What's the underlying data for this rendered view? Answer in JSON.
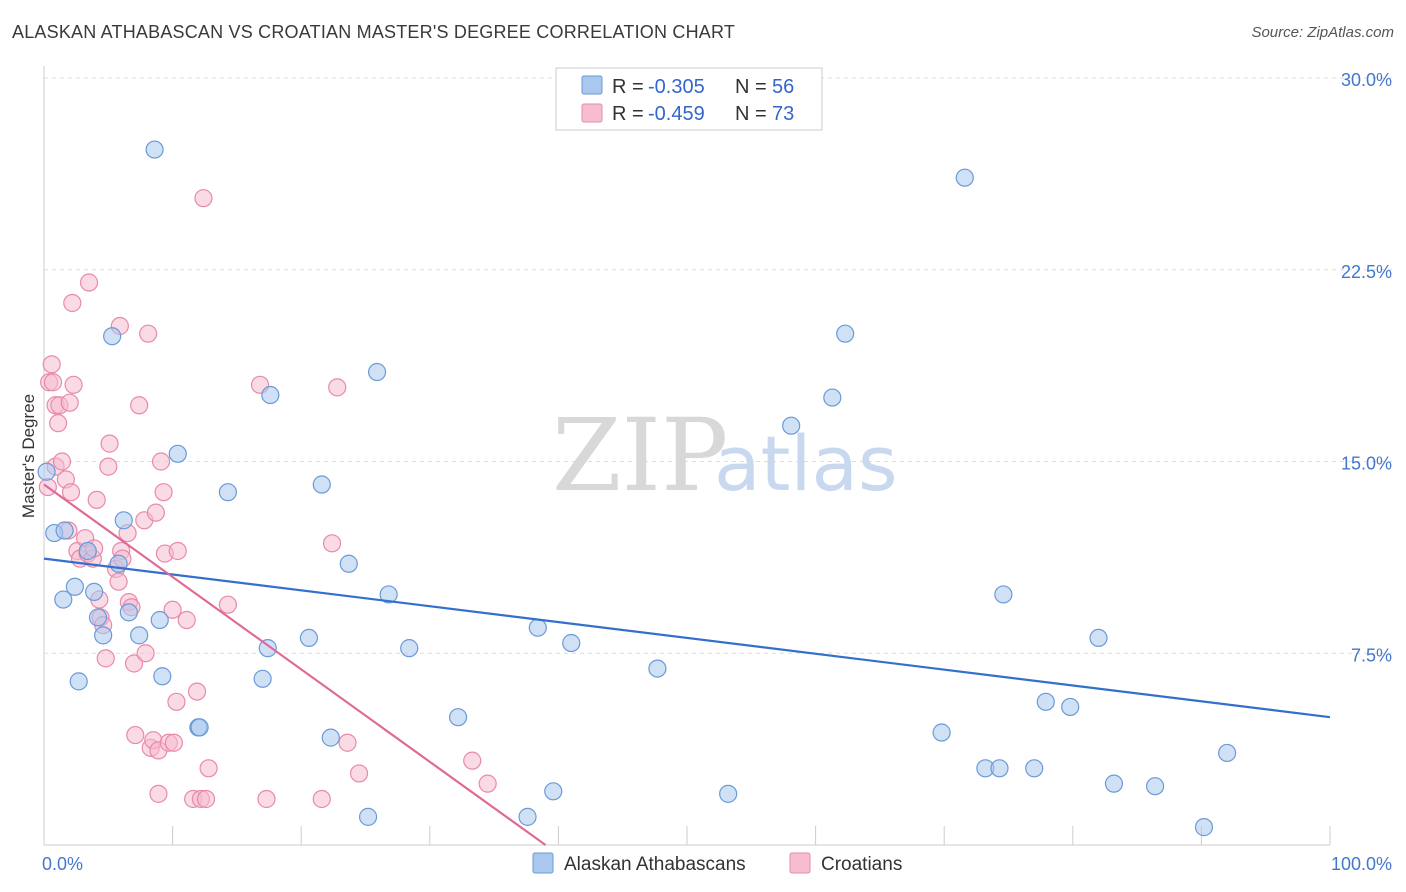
{
  "title": "ALASKAN ATHABASCAN VS CROATIAN MASTER'S DEGREE CORRELATION CHART",
  "source": "Source: ZipAtlas.com",
  "watermark": {
    "zip": "ZIP",
    "atlas": "atlas"
  },
  "legend": {
    "r_label": "R =",
    "n_label": "N =",
    "series": [
      {
        "r": "-0.305",
        "n": "56"
      },
      {
        "r": "-0.459",
        "n": "73"
      }
    ]
  },
  "bottom_legend": [
    "Alaskan Athabascans",
    "Croatians"
  ],
  "colors": {
    "blue_fill": "#aac8ee",
    "blue_stroke": "#6a9ad8",
    "blue_line": "#3370cc",
    "pink_fill": "#f6bcd0",
    "pink_stroke": "#e88aaa",
    "pink_line": "#e06a96",
    "grid": "#dddddd",
    "tick_text": "#4477cc"
  },
  "chart_data": {
    "type": "scatter",
    "title": "ALASKAN ATHABASCAN VS CROATIAN MASTER'S DEGREE CORRELATION CHART",
    "xlabel": "",
    "ylabel": "Master's Degree",
    "xlim": [
      0,
      100
    ],
    "ylim": [
      0,
      30
    ],
    "x_tick_labels": [
      "0.0%",
      "100.0%"
    ],
    "y_ticks": [
      7.5,
      15.0,
      22.5,
      30.0
    ],
    "y_tick_labels": [
      "7.5%",
      "15.0%",
      "22.5%",
      "30.0%"
    ],
    "grid": true,
    "legend_position": "top-center",
    "series": [
      {
        "name": "Alaskan Athabascans",
        "r": -0.305,
        "n": 56,
        "trend": {
          "x": [
            0,
            100
          ],
          "y": [
            11.2,
            5.0
          ]
        },
        "points": [
          [
            0.2,
            14.6
          ],
          [
            0.8,
            12.2
          ],
          [
            1.6,
            12.3
          ],
          [
            1.5,
            9.6
          ],
          [
            2.4,
            10.1
          ],
          [
            2.7,
            6.4
          ],
          [
            3.4,
            11.5
          ],
          [
            3.9,
            9.9
          ],
          [
            4.2,
            8.9
          ],
          [
            4.6,
            8.2
          ],
          [
            5.3,
            19.9
          ],
          [
            5.8,
            11.0
          ],
          [
            6.2,
            12.7
          ],
          [
            6.6,
            9.1
          ],
          [
            7.4,
            8.2
          ],
          [
            8.6,
            27.2
          ],
          [
            9.0,
            8.8
          ],
          [
            9.2,
            6.6
          ],
          [
            10.4,
            15.3
          ],
          [
            12.0,
            4.6
          ],
          [
            12.1,
            4.6
          ],
          [
            14.3,
            13.8
          ],
          [
            17.0,
            6.5
          ],
          [
            17.4,
            7.7
          ],
          [
            17.6,
            17.6
          ],
          [
            20.6,
            8.1
          ],
          [
            21.6,
            14.1
          ],
          [
            22.3,
            4.2
          ],
          [
            23.7,
            11.0
          ],
          [
            25.2,
            1.1
          ],
          [
            25.9,
            18.5
          ],
          [
            26.8,
            9.8
          ],
          [
            28.4,
            7.7
          ],
          [
            32.2,
            5.0
          ],
          [
            37.6,
            1.1
          ],
          [
            38.4,
            8.5
          ],
          [
            39.6,
            2.1
          ],
          [
            41.0,
            7.9
          ],
          [
            47.7,
            6.9
          ],
          [
            53.2,
            2.0
          ],
          [
            58.1,
            16.4
          ],
          [
            61.3,
            17.5
          ],
          [
            62.3,
            20.0
          ],
          [
            69.8,
            4.4
          ],
          [
            71.6,
            26.1
          ],
          [
            73.2,
            3.0
          ],
          [
            74.3,
            3.0
          ],
          [
            74.6,
            9.8
          ],
          [
            77.0,
            3.0
          ],
          [
            77.9,
            5.6
          ],
          [
            79.8,
            5.4
          ],
          [
            82.0,
            8.1
          ],
          [
            83.2,
            2.4
          ],
          [
            86.4,
            2.3
          ],
          [
            90.2,
            0.7
          ],
          [
            92.0,
            3.6
          ]
        ]
      },
      {
        "name": "Croatians",
        "r": -0.459,
        "n": 73,
        "trend": {
          "x": [
            0,
            39
          ],
          "y": [
            14.1,
            0
          ]
        },
        "points": [
          [
            0.3,
            14.0
          ],
          [
            0.4,
            18.1
          ],
          [
            0.6,
            18.8
          ],
          [
            0.7,
            18.1
          ],
          [
            0.9,
            17.2
          ],
          [
            0.9,
            14.8
          ],
          [
            1.1,
            16.5
          ],
          [
            1.2,
            17.2
          ],
          [
            1.4,
            15.0
          ],
          [
            1.7,
            14.3
          ],
          [
            1.9,
            12.3
          ],
          [
            2.0,
            17.3
          ],
          [
            2.1,
            13.8
          ],
          [
            2.2,
            21.2
          ],
          [
            2.3,
            18.0
          ],
          [
            2.6,
            11.5
          ],
          [
            2.8,
            11.2
          ],
          [
            3.2,
            12.0
          ],
          [
            3.4,
            11.4
          ],
          [
            3.5,
            22.0
          ],
          [
            3.8,
            11.2
          ],
          [
            3.9,
            11.6
          ],
          [
            4.1,
            13.5
          ],
          [
            4.3,
            9.6
          ],
          [
            4.4,
            8.9
          ],
          [
            4.6,
            8.6
          ],
          [
            4.8,
            7.3
          ],
          [
            5.0,
            14.8
          ],
          [
            5.1,
            15.7
          ],
          [
            5.6,
            10.8
          ],
          [
            5.8,
            10.3
          ],
          [
            5.9,
            20.3
          ],
          [
            6.0,
            11.5
          ],
          [
            6.1,
            11.2
          ],
          [
            6.5,
            12.2
          ],
          [
            6.6,
            9.5
          ],
          [
            6.8,
            9.3
          ],
          [
            7.0,
            7.1
          ],
          [
            7.1,
            4.3
          ],
          [
            7.4,
            17.2
          ],
          [
            7.8,
            12.7
          ],
          [
            7.9,
            7.5
          ],
          [
            8.1,
            20.0
          ],
          [
            8.3,
            3.8
          ],
          [
            8.5,
            4.1
          ],
          [
            8.7,
            13.0
          ],
          [
            8.9,
            3.7
          ],
          [
            8.9,
            2.0
          ],
          [
            9.1,
            15.0
          ],
          [
            9.3,
            13.8
          ],
          [
            9.4,
            11.4
          ],
          [
            9.7,
            4.0
          ],
          [
            10.0,
            9.2
          ],
          [
            10.1,
            4.0
          ],
          [
            10.3,
            5.6
          ],
          [
            10.4,
            11.5
          ],
          [
            11.1,
            8.8
          ],
          [
            11.6,
            1.8
          ],
          [
            11.9,
            6.0
          ],
          [
            12.2,
            1.8
          ],
          [
            12.4,
            25.3
          ],
          [
            12.6,
            1.8
          ],
          [
            12.8,
            3.0
          ],
          [
            14.3,
            9.4
          ],
          [
            16.8,
            18.0
          ],
          [
            17.3,
            1.8
          ],
          [
            21.6,
            1.8
          ],
          [
            22.4,
            11.8
          ],
          [
            22.8,
            17.9
          ],
          [
            23.6,
            4.0
          ],
          [
            24.5,
            2.8
          ],
          [
            33.3,
            3.3
          ],
          [
            34.5,
            2.4
          ]
        ]
      }
    ]
  }
}
